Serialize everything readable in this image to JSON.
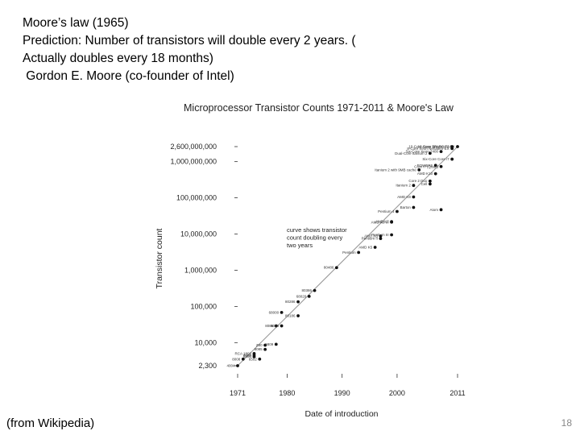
{
  "slide": {
    "lines": [
      "Moore’s law (1965)",
      "Prediction: Number of transistors will double every 2 years. (",
      "Actually doubles every 18 months)",
      " Gordon E. Moore (co-founder of Intel)"
    ],
    "source": "(from Wikipedia)",
    "page_number": "18"
  },
  "chart_data": {
    "type": "scatter",
    "title": "Microprocessor Transistor Counts 1971-2011 & Moore's Law",
    "xlabel": "Date of introduction",
    "ylabel": "Transistor count",
    "xlim": [
      1971,
      2011
    ],
    "ylim": [
      2300,
      2600000000
    ],
    "yscale": "log",
    "x_ticks": [
      1971,
      1980,
      1990,
      2000,
      2011
    ],
    "y_ticks": [
      {
        "value": 2600000000,
        "label": "2,600,000,000"
      },
      {
        "value": 1000000000,
        "label": "1,000,000,000"
      },
      {
        "value": 100000000,
        "label": "100,000,000"
      },
      {
        "value": 10000000,
        "label": "10,000,000"
      },
      {
        "value": 1000000,
        "label": "1,000,000"
      },
      {
        "value": 100000,
        "label": "100,000"
      },
      {
        "value": 10000,
        "label": "10,000"
      },
      {
        "value": 2300,
        "label": "2,300"
      }
    ],
    "annotation": [
      "curve shows transistor",
      "count doubling every",
      "two years"
    ],
    "trend": {
      "x": [
        1971,
        2011
      ],
      "y": [
        2300,
        2600000000
      ]
    },
    "points": [
      {
        "label": "4004",
        "x": 1971,
        "y": 2300
      },
      {
        "label": "8008",
        "x": 1972,
        "y": 3500
      },
      {
        "label": "8080",
        "x": 1974,
        "y": 4500
      },
      {
        "label": "RCA 1802",
        "x": 1974,
        "y": 5000
      },
      {
        "label": "6800",
        "x": 1974,
        "y": 4100
      },
      {
        "label": "6502",
        "x": 1975,
        "y": 3510
      },
      {
        "label": "Z80",
        "x": 1976,
        "y": 8500
      },
      {
        "label": "8085",
        "x": 1976,
        "y": 6500
      },
      {
        "label": "6809",
        "x": 1978,
        "y": 9000
      },
      {
        "label": "8086",
        "x": 1978,
        "y": 29000
      },
      {
        "label": "8088",
        "x": 1979,
        "y": 29000
      },
      {
        "label": "68000",
        "x": 1979,
        "y": 68000
      },
      {
        "label": "80186",
        "x": 1982,
        "y": 55000
      },
      {
        "label": "80286",
        "x": 1982,
        "y": 134000
      },
      {
        "label": "68020",
        "x": 1984,
        "y": 190000
      },
      {
        "label": "80386",
        "x": 1985,
        "y": 275000
      },
      {
        "label": "80486",
        "x": 1989,
        "y": 1180000
      },
      {
        "label": "Pentium",
        "x": 1993,
        "y": 3100000
      },
      {
        "label": "AMD K5",
        "x": 1996,
        "y": 4300000
      },
      {
        "label": "Pentium II",
        "x": 1997,
        "y": 7500000
      },
      {
        "label": "AMD K6",
        "x": 1997,
        "y": 8800000
      },
      {
        "label": "Pentium III",
        "x": 1999,
        "y": 9500000
      },
      {
        "label": "AMD K6-III",
        "x": 1999,
        "y": 21300000
      },
      {
        "label": "AMD K7",
        "x": 1999,
        "y": 22000000
      },
      {
        "label": "Pentium 4",
        "x": 2000,
        "y": 42000000
      },
      {
        "label": "Barton",
        "x": 2003,
        "y": 54300000
      },
      {
        "label": "AMD K8",
        "x": 2003,
        "y": 105900000
      },
      {
        "label": "Itanium 2",
        "x": 2003,
        "y": 220000000
      },
      {
        "label": "Cell",
        "x": 2006,
        "y": 241000000
      },
      {
        "label": "Core 2 Duo",
        "x": 2006,
        "y": 291000000
      },
      {
        "label": "Atom",
        "x": 2008,
        "y": 47000000
      },
      {
        "label": "AMD K10",
        "x": 2007,
        "y": 463000000
      },
      {
        "label": "POWER6",
        "x": 2007,
        "y": 789000000
      },
      {
        "label": "Itanium 2 with 9MB cache",
        "x": 2004,
        "y": 592000000
      },
      {
        "label": "Core i7 (Quad)",
        "x": 2008,
        "y": 731000000
      },
      {
        "label": "Dual-Core Itanium 2",
        "x": 2006,
        "y": 1700000000
      },
      {
        "label": "Six-Core Core i7",
        "x": 2010,
        "y": 1170000000
      },
      {
        "label": "Six-Core Xeon 7400",
        "x": 2008,
        "y": 1900000000
      },
      {
        "label": "8-Core Xeon Nehalem-EX",
        "x": 2010,
        "y": 2300000000
      },
      {
        "label": "10-Core Xeon Westmere-EX",
        "x": 2011,
        "y": 2600000000
      },
      {
        "label": "16-Core SPARC T3",
        "x": 2010,
        "y": 2600000000
      }
    ]
  }
}
